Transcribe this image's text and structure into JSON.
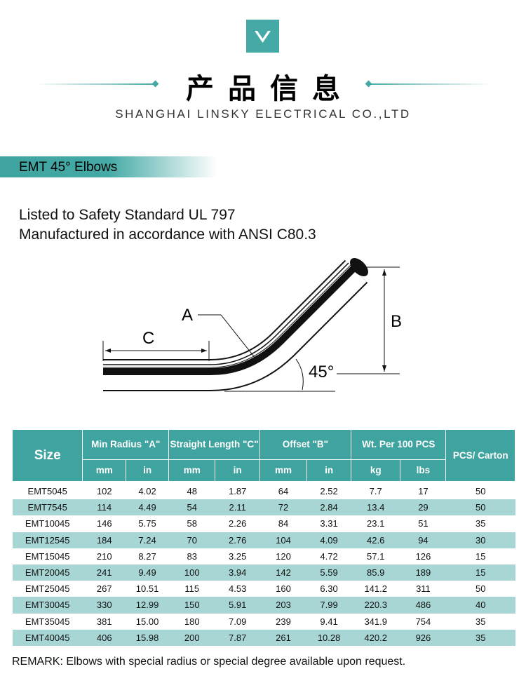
{
  "header": {
    "logo_icon": "chevron-down-icon",
    "title": "产品信息",
    "subtitle": "SHANGHAI LINSKY ELECTRICAL CO.,LTD"
  },
  "section": {
    "title": "EMT 45° Elbows"
  },
  "intro": {
    "line1": "Listed to Safety Standard UL 797",
    "line2": "Manufactured in accordance with ANSI C80.3"
  },
  "diagram": {
    "label_a": "A",
    "label_b": "B",
    "label_c": "C",
    "angle": "45°"
  },
  "colors": {
    "accent": "#45aaa6",
    "row_alt": "#a7d6d4"
  },
  "table": {
    "headers": {
      "size": "Size",
      "min_radius": "Min Radius \"A\"",
      "straight_length": "Straight Length \"C\"",
      "offset": "Offset \"B\"",
      "weight": "Wt. Per 100 PCS",
      "pcs": "PCS/ Carton",
      "mm": "mm",
      "in": "in",
      "kg": "kg",
      "lbs": "lbs"
    },
    "rows": [
      [
        "EMT5045",
        "102",
        "4.02",
        "48",
        "1.87",
        "64",
        "2.52",
        "7.7",
        "17",
        "50"
      ],
      [
        "EMT7545",
        "114",
        "4.49",
        "54",
        "2.11",
        "72",
        "2.84",
        "13.4",
        "29",
        "50"
      ],
      [
        "EMT10045",
        "146",
        "5.75",
        "58",
        "2.26",
        "84",
        "3.31",
        "23.1",
        "51",
        "35"
      ],
      [
        "EMT12545",
        "184",
        "7.24",
        "70",
        "2.76",
        "104",
        "4.09",
        "42.6",
        "94",
        "30"
      ],
      [
        "EMT15045",
        "210",
        "8.27",
        "83",
        "3.25",
        "120",
        "4.72",
        "57.1",
        "126",
        "15"
      ],
      [
        "EMT20045",
        "241",
        "9.49",
        "100",
        "3.94",
        "142",
        "5.59",
        "85.9",
        "189",
        "15"
      ],
      [
        "EMT25045",
        "267",
        "10.51",
        "115",
        "4.53",
        "160",
        "6.30",
        "141.2",
        "311",
        "50"
      ],
      [
        "EMT30045",
        "330",
        "12.99",
        "150",
        "5.91",
        "203",
        "7.99",
        "220.3",
        "486",
        "40"
      ],
      [
        "EMT35045",
        "381",
        "15.00",
        "180",
        "7.09",
        "239",
        "9.41",
        "341.9",
        "754",
        "35"
      ],
      [
        "EMT40045",
        "406",
        "15.98",
        "200",
        "7.87",
        "261",
        "10.28",
        "420.2",
        "926",
        "35"
      ]
    ]
  },
  "remark": "REMARK: Elbows with special radius or special degree available upon request."
}
